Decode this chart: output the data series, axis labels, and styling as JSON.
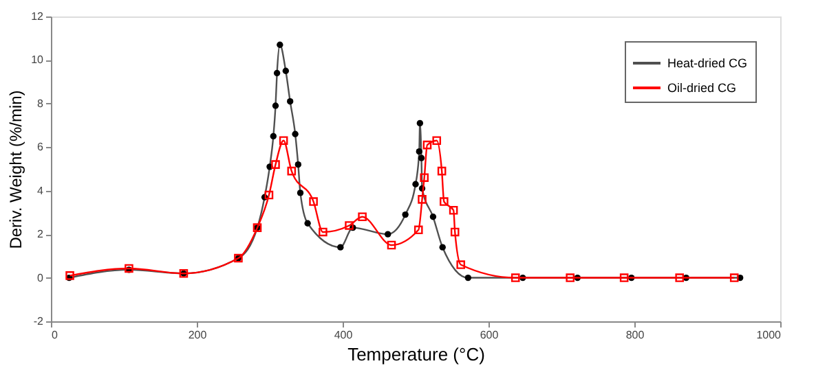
{
  "chart_data": {
    "type": "line",
    "xlabel": "Temperature (°C)",
    "ylabel": "Deriv. Weight (%/min)",
    "xlim": [
      0,
      1000
    ],
    "xticks": [
      0,
      200,
      400,
      600,
      800,
      1000
    ],
    "line_style": "solid",
    "ylim": [
      -2,
      12
    ],
    "yticks": [
      -2,
      0,
      2,
      4,
      6,
      8,
      10,
      12
    ],
    "grid": false,
    "legend": "top right",
    "series": [
      {
        "name": "Heat-dried CG",
        "color": "#505050",
        "marker": "circle",
        "x": [
          25,
          107,
          182,
          257,
          283,
          293,
          300,
          305,
          308,
          310,
          314,
          322,
          328,
          335,
          339,
          342,
          352,
          397,
          414,
          462,
          486,
          500,
          505,
          506,
          508,
          509,
          524,
          537,
          572,
          647,
          722,
          796,
          871,
          945
        ],
        "values": [
          0,
          0.37,
          0.2,
          0.9,
          2.3,
          3.7,
          5.1,
          6.5,
          7.9,
          9.4,
          10.7,
          9.5,
          8.1,
          6.6,
          5.2,
          3.9,
          2.5,
          1.4,
          2.3,
          2.0,
          2.9,
          4.3,
          5.8,
          7.1,
          5.5,
          4.1,
          2.8,
          1.4,
          0,
          0,
          0,
          0,
          0,
          0
        ]
      },
      {
        "name": "Oil-dried CG",
        "color": "#ff0000",
        "marker": "square",
        "x": [
          26,
          107,
          182,
          257,
          283,
          299,
          308,
          319,
          330,
          360,
          373,
          409,
          427,
          467,
          504,
          509,
          512,
          516,
          529,
          536,
          539,
          552,
          554,
          562,
          637,
          712,
          786,
          862,
          937
        ],
        "values": [
          0.1,
          0.43,
          0.2,
          0.9,
          2.3,
          3.8,
          5.2,
          6.3,
          4.9,
          3.5,
          2.1,
          2.4,
          2.8,
          1.5,
          2.2,
          3.6,
          4.6,
          6.1,
          6.3,
          4.9,
          3.5,
          3.1,
          2.1,
          0.6,
          0,
          0,
          0,
          0,
          0
        ]
      }
    ]
  }
}
